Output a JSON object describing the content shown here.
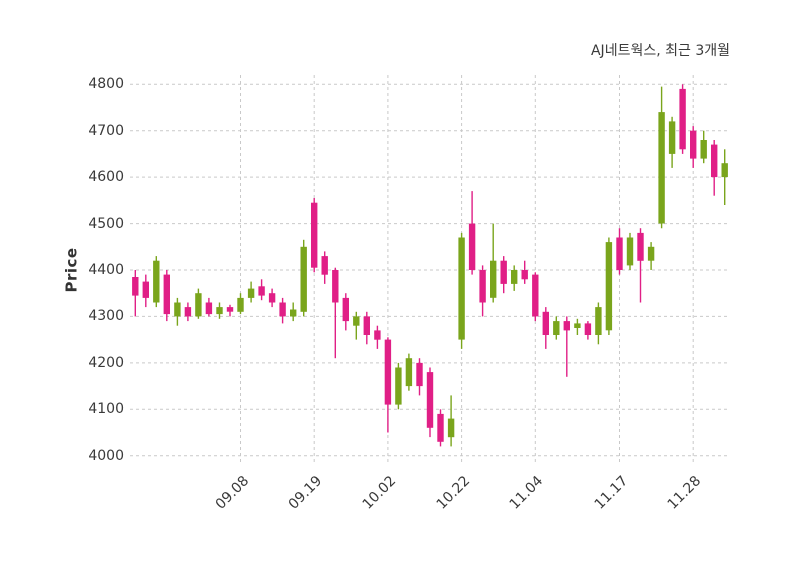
{
  "chart_data": {
    "type": "candlestick",
    "title": "AJ네트웍스, 최근 3개월",
    "ylabel": "Price",
    "ylim": [
      3980,
      4820
    ],
    "y_ticks": [
      4000,
      4100,
      4200,
      4300,
      4400,
      4500,
      4600,
      4700,
      4800
    ],
    "x_ticks": [
      {
        "index": 10,
        "label": "09.08"
      },
      {
        "index": 17,
        "label": "09.19"
      },
      {
        "index": 24,
        "label": "10.02"
      },
      {
        "index": 31,
        "label": "10.22"
      },
      {
        "index": 38,
        "label": "11.04"
      },
      {
        "index": 46,
        "label": "11.17"
      },
      {
        "index": 53,
        "label": "11.28"
      }
    ],
    "grid": "dashed",
    "legend": "none",
    "up_color": "#7AA51C",
    "down_color": "#E01F86",
    "grid_color": "#C9C9C9",
    "candles_format": [
      "open",
      "high",
      "low",
      "close"
    ],
    "candles": [
      [
        4385,
        4400,
        4300,
        4345
      ],
      [
        4375,
        4390,
        4320,
        4340
      ],
      [
        4330,
        4430,
        4320,
        4420
      ],
      [
        4390,
        4400,
        4290,
        4305
      ],
      [
        4300,
        4340,
        4280,
        4330
      ],
      [
        4320,
        4330,
        4290,
        4300
      ],
      [
        4300,
        4360,
        4295,
        4350
      ],
      [
        4330,
        4340,
        4300,
        4305
      ],
      [
        4305,
        4330,
        4295,
        4320
      ],
      [
        4320,
        4325,
        4300,
        4310
      ],
      [
        4310,
        4350,
        4305,
        4340
      ],
      [
        4340,
        4375,
        4330,
        4360
      ],
      [
        4365,
        4380,
        4335,
        4345
      ],
      [
        4350,
        4360,
        4320,
        4330
      ],
      [
        4330,
        4340,
        4285,
        4300
      ],
      [
        4300,
        4330,
        4290,
        4315
      ],
      [
        4310,
        4465,
        4300,
        4450
      ],
      [
        4545,
        4555,
        4395,
        4405
      ],
      [
        4430,
        4440,
        4370,
        4390
      ],
      [
        4400,
        4405,
        4210,
        4330
      ],
      [
        4340,
        4350,
        4270,
        4290
      ],
      [
        4280,
        4310,
        4250,
        4300
      ],
      [
        4300,
        4310,
        4240,
        4260
      ],
      [
        4270,
        4280,
        4230,
        4250
      ],
      [
        4250,
        4255,
        4050,
        4110
      ],
      [
        4110,
        4200,
        4100,
        4190
      ],
      [
        4150,
        4220,
        4140,
        4210
      ],
      [
        4200,
        4210,
        4130,
        4150
      ],
      [
        4180,
        4190,
        4040,
        4060
      ],
      [
        4090,
        4100,
        4020,
        4030
      ],
      [
        4040,
        4130,
        4020,
        4080
      ],
      [
        4250,
        4480,
        4230,
        4470
      ],
      [
        4500,
        4570,
        4390,
        4400
      ],
      [
        4400,
        4410,
        4300,
        4330
      ],
      [
        4340,
        4500,
        4330,
        4420
      ],
      [
        4420,
        4430,
        4350,
        4370
      ],
      [
        4370,
        4410,
        4355,
        4400
      ],
      [
        4400,
        4420,
        4370,
        4380
      ],
      [
        4390,
        4395,
        4290,
        4300
      ],
      [
        4310,
        4320,
        4230,
        4260
      ],
      [
        4260,
        4300,
        4250,
        4290
      ],
      [
        4290,
        4300,
        4170,
        4270
      ],
      [
        4275,
        4295,
        4260,
        4285
      ],
      [
        4285,
        4290,
        4250,
        4260
      ],
      [
        4260,
        4330,
        4240,
        4320
      ],
      [
        4270,
        4470,
        4260,
        4460
      ],
      [
        4470,
        4490,
        4390,
        4400
      ],
      [
        4410,
        4480,
        4400,
        4470
      ],
      [
        4480,
        4490,
        4330,
        4420
      ],
      [
        4420,
        4460,
        4400,
        4450
      ],
      [
        4500,
        4795,
        4490,
        4740
      ],
      [
        4650,
        4730,
        4620,
        4720
      ],
      [
        4790,
        4800,
        4650,
        4660
      ],
      [
        4700,
        4710,
        4620,
        4640
      ],
      [
        4640,
        4700,
        4630,
        4680
      ],
      [
        4670,
        4680,
        4560,
        4600
      ],
      [
        4600,
        4660,
        4540,
        4630
      ]
    ]
  }
}
